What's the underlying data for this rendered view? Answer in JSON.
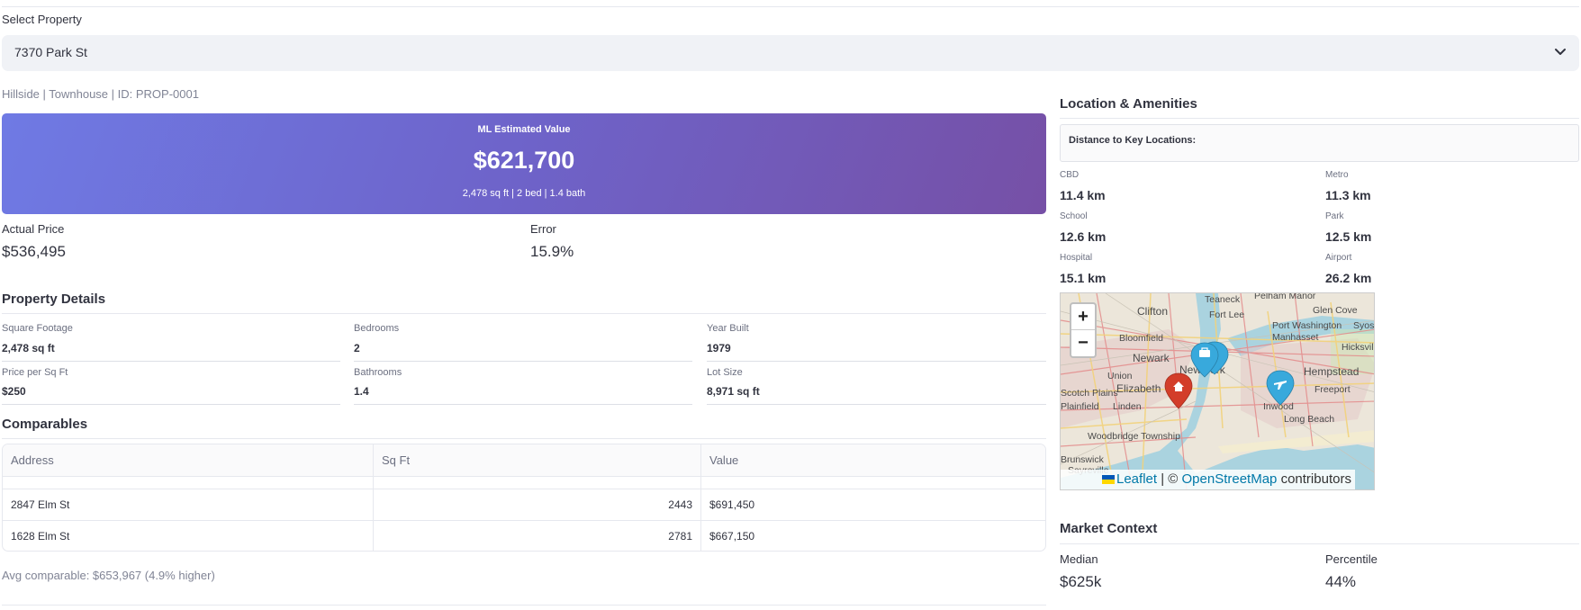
{
  "select": {
    "label": "Select Property",
    "value": "7370 Park St"
  },
  "property": {
    "subtitle": "Hillside | Townhouse | ID: PROP-0001"
  },
  "estimate": {
    "label": "ML Estimated Value",
    "value": "$621,700",
    "details": "2,478 sq ft | 2 bed | 1.4 bath"
  },
  "metrics": {
    "actual_label": "Actual Price",
    "actual_value": "$536,495",
    "error_label": "Error",
    "error_value": "15.9%"
  },
  "details": {
    "title": "Property Details",
    "items": [
      {
        "label": "Square Footage",
        "value": "2,478 sq ft"
      },
      {
        "label": "Bedrooms",
        "value": "2"
      },
      {
        "label": "Year Built",
        "value": "1979"
      },
      {
        "label": "Price per Sq Ft",
        "value": "$250"
      },
      {
        "label": "Bathrooms",
        "value": "1.4"
      },
      {
        "label": "Lot Size",
        "value": "8,971 sq ft"
      }
    ]
  },
  "comparables": {
    "title": "Comparables",
    "columns": [
      "Address",
      "Sq Ft",
      "Value"
    ],
    "rows": [
      {
        "address": "2847 Elm St",
        "sqft": "2443",
        "value": "$691,450"
      },
      {
        "address": "1628 Elm St",
        "sqft": "2781",
        "value": "$667,150"
      }
    ],
    "avg": "Avg comparable: $653,967 (4.9% higher)"
  },
  "location": {
    "title": "Location & Amenities",
    "distance_header": "Distance to Key Locations:",
    "items": [
      {
        "label": "CBD",
        "value": "11.4 km"
      },
      {
        "label": "Metro",
        "value": "11.3 km"
      },
      {
        "label": "School",
        "value": "12.6 km"
      },
      {
        "label": "Park",
        "value": "12.5 km"
      },
      {
        "label": "Hospital",
        "value": "15.1 km"
      },
      {
        "label": "Airport",
        "value": "26.2 km"
      }
    ]
  },
  "map": {
    "zoom_in": "+",
    "zoom_out": "−",
    "attribution_leaflet": "Leaflet",
    "attribution_sep": " | © ",
    "attribution_osm": "OpenStreetMap",
    "attribution_tail": " contributors",
    "places": [
      "Teaneck",
      "Pelham Manor",
      "Clifton",
      "Fort Lee",
      "Glen Cove",
      "Bloomfield",
      "Port Washington",
      "Syosset",
      "Manhasset",
      "Newark",
      "New York",
      "Hicksville",
      "Union",
      "Hempstead",
      "Elizabeth",
      "Freeport",
      "Scotch Plains",
      "Linden",
      "Inwood",
      "Plainfield",
      "Long Beach",
      "Woodbridge Township",
      "Brunswick",
      "Sayreville"
    ],
    "colors": {
      "water": "#aad3df",
      "land": "#ece6da",
      "home_marker": "#d33d29",
      "amenity_marker": "#38a9dc"
    }
  },
  "market": {
    "title": "Market Context",
    "median_label": "Median",
    "median_value": "$625k",
    "percentile_label": "Percentile",
    "percentile_value": "44%"
  }
}
